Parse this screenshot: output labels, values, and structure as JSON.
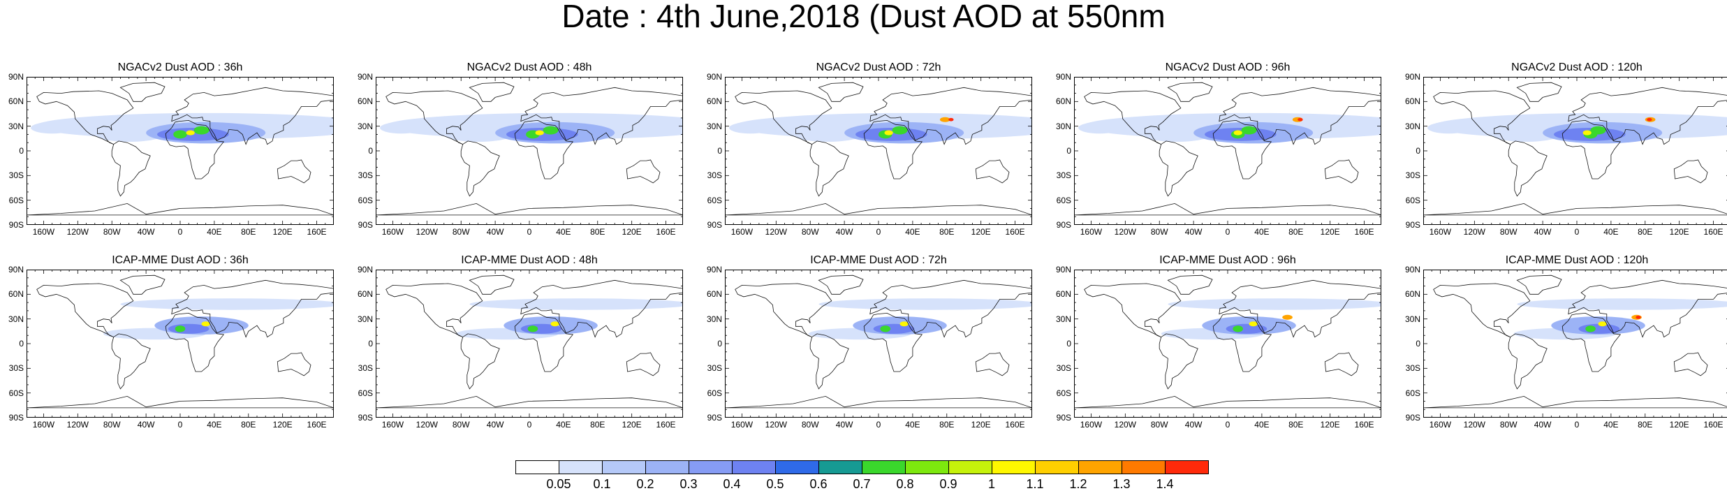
{
  "title": "Date : 4th June,2018 (Dust AOD at 550nm",
  "lat_labels": [
    "90N",
    "60N",
    "30N",
    "0",
    "30S",
    "60S",
    "90S"
  ],
  "lon_labels": [
    "160W",
    "120W",
    "80W",
    "40W",
    "0",
    "40E",
    "80E",
    "120E",
    "160E"
  ],
  "panels": [
    {
      "title": "NGACv2 Dust AOD : 36h"
    },
    {
      "title": "NGACv2 Dust AOD : 48h"
    },
    {
      "title": "NGACv2 Dust AOD : 72h"
    },
    {
      "title": "NGACv2 Dust AOD : 96h"
    },
    {
      "title": "NGACv2 Dust AOD : 120h"
    },
    {
      "title": "ICAP-MME Dust AOD : 36h"
    },
    {
      "title": "ICAP-MME Dust AOD : 48h"
    },
    {
      "title": "ICAP-MME Dust AOD : 72h"
    },
    {
      "title": "ICAP-MME Dust AOD : 96h"
    },
    {
      "title": "ICAP-MME Dust AOD : 120h"
    }
  ],
  "colorbar": {
    "labels": [
      "0.05",
      "0.1",
      "0.2",
      "0.3",
      "0.4",
      "0.5",
      "0.6",
      "0.7",
      "0.8",
      "0.9",
      "1",
      "1.1",
      "1.2",
      "1.3",
      "1.4"
    ],
    "colors": [
      "#ffffff",
      "#d6e2fb",
      "#b5c9f8",
      "#9cb3f6",
      "#869cf4",
      "#6e82f1",
      "#2f6ae8",
      "#169a93",
      "#3ad72c",
      "#7de80e",
      "#c6f20b",
      "#fff700",
      "#ffcf00",
      "#ffa400",
      "#ff7a00",
      "#ff2a0a"
    ]
  },
  "plume_colors": {
    "light": "#d6e2fb",
    "mid": "#9cb3f6",
    "strong": "#6e82f1",
    "green": "#3ad72c",
    "yellow": "#fff700",
    "orange": "#ffa400",
    "red": "#ff2a0a"
  }
}
